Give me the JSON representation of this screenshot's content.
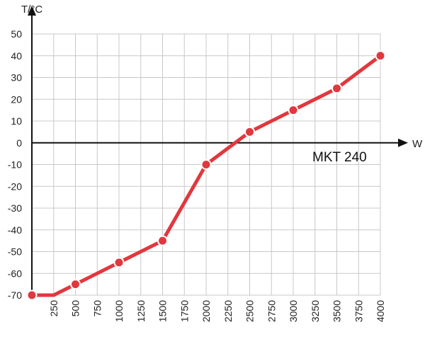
{
  "chart_data": {
    "type": "line",
    "title": "",
    "xlabel": "W",
    "ylabel": "T/°C",
    "annotation": "MKT 240",
    "xlim": [
      0,
      4000
    ],
    "ylim": [
      -70,
      50
    ],
    "grid": true,
    "x_ticks": [
      "250",
      "500",
      "750",
      "1000",
      "1250",
      "1500",
      "1750",
      "2000",
      "2250",
      "2500",
      "2750",
      "3000",
      "3250",
      "3500",
      "3750",
      "4000"
    ],
    "y_ticks": [
      "50",
      "40",
      "30",
      "20",
      "10",
      "0",
      "-10",
      "-20",
      "-30",
      "-40",
      "-50",
      "-60",
      "-70"
    ],
    "series": [
      {
        "color": "#e0383e",
        "points": [
          {
            "x": 0,
            "y": -70
          },
          {
            "x": 250,
            "y": -70
          },
          {
            "x": 500,
            "y": -65
          },
          {
            "x": 1000,
            "y": -55
          },
          {
            "x": 1500,
            "y": -45
          },
          {
            "x": 2000,
            "y": -10
          },
          {
            "x": 2500,
            "y": 5
          },
          {
            "x": 3000,
            "y": 15
          },
          {
            "x": 3500,
            "y": 25
          },
          {
            "x": 4000,
            "y": 40
          }
        ],
        "markers": [
          0,
          2,
          3,
          4,
          5,
          6,
          7,
          8,
          9
        ]
      }
    ]
  }
}
